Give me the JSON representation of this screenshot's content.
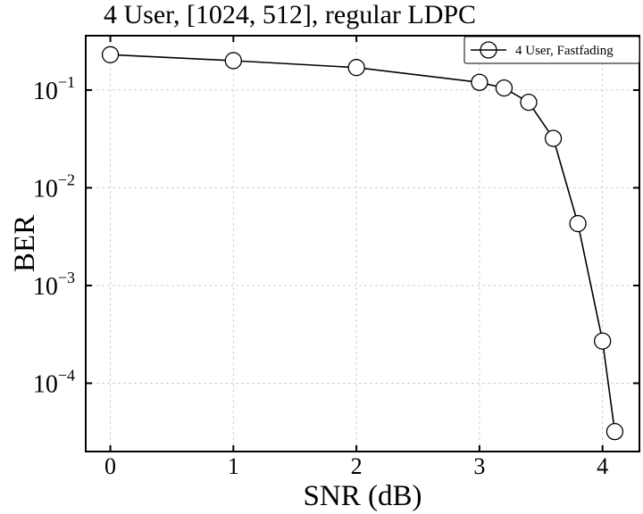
{
  "chart_data": {
    "type": "line",
    "title": "4 User, [1024, 512], regular LDPC",
    "xlabel": "SNR (dB)",
    "ylabel": "BER",
    "xlim": [
      -0.2,
      4.3
    ],
    "ylim": [
      2e-05,
      0.36
    ],
    "yscale": "log",
    "grid": true,
    "legend_position": "top-right",
    "x_ticks": [
      0,
      1,
      2,
      3,
      4
    ],
    "x_tick_labels": [
      "0",
      "1",
      "2",
      "3",
      "4"
    ],
    "y_ticks": [
      {
        "value": 0.1,
        "base": "10",
        "exp": "−1"
      },
      {
        "value": 0.01,
        "base": "10",
        "exp": "−2"
      },
      {
        "value": 0.001,
        "base": "10",
        "exp": "−3"
      },
      {
        "value": 0.0001,
        "base": "10",
        "exp": "−4"
      }
    ],
    "series": [
      {
        "name": "4 User, Fastfading",
        "color": "#000000",
        "marker": "open-circle",
        "x": [
          0,
          1,
          2,
          3,
          3.2,
          3.4,
          3.6,
          3.8,
          4.0,
          4.1
        ],
        "y": [
          0.23,
          0.2,
          0.17,
          0.12,
          0.105,
          0.075,
          0.032,
          0.0043,
          0.00027,
          3.2e-05
        ]
      }
    ]
  }
}
